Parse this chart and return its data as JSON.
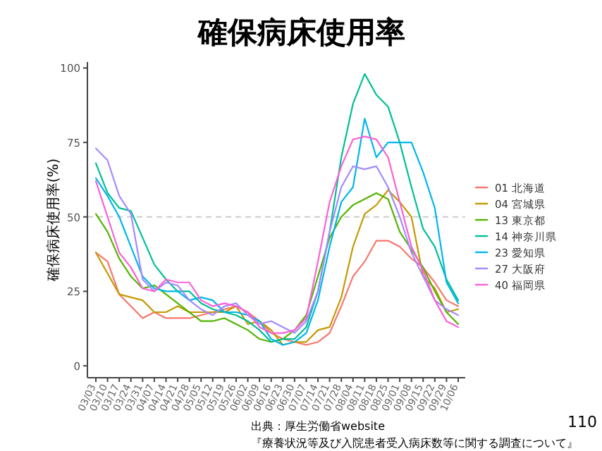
{
  "chart_data": {
    "type": "line",
    "title": "確保病床使用率",
    "ylabel": "確保病床使用率(%)",
    "categories": [
      "03/03",
      "03/10",
      "03/17",
      "03/24",
      "03/31",
      "04/07",
      "04/14",
      "04/21",
      "04/28",
      "05/05",
      "05/12",
      "05/19",
      "05/26",
      "06/02",
      "06/09",
      "06/16",
      "06/23",
      "06/30",
      "07/07",
      "07/14",
      "07/21",
      "07/28",
      "08/04",
      "08/11",
      "08/18",
      "08/25",
      "09/01",
      "09/08",
      "09/15",
      "09/22",
      "09/29",
      "10/06"
    ],
    "series": [
      {
        "name": "01 北海道",
        "color": "#f8766d",
        "values": [
          38,
          35,
          24,
          20,
          16,
          18,
          16,
          16,
          16,
          17,
          18,
          19,
          20,
          18,
          15,
          11,
          9,
          8,
          7,
          8,
          11,
          20,
          30,
          35,
          42,
          42,
          40,
          36,
          33,
          28,
          22,
          20
        ]
      },
      {
        "name": "04 宮城県",
        "color": "#c49a00",
        "values": [
          38,
          31,
          24,
          23,
          22,
          18,
          18,
          20,
          18,
          18,
          18,
          18,
          20,
          14,
          15,
          12,
          7,
          8,
          8,
          12,
          13,
          23,
          40,
          51,
          54,
          59,
          55,
          50,
          30,
          26,
          18,
          19
        ]
      },
      {
        "name": "13 東京都",
        "color": "#53b400",
        "values": [
          51,
          45,
          36,
          30,
          26,
          27,
          24,
          21,
          18,
          15,
          15,
          16,
          14,
          12,
          9,
          8,
          9,
          12,
          17,
          30,
          43,
          50,
          54,
          56,
          58,
          56,
          45,
          39,
          33,
          25,
          18,
          14
        ]
      },
      {
        "name": "14 神奈川県",
        "color": "#00c094",
        "values": [
          68,
          58,
          53,
          52,
          43,
          34,
          29,
          25,
          25,
          21,
          19,
          18,
          17,
          15,
          12,
          8,
          9,
          9,
          13,
          25,
          45,
          70,
          88,
          98,
          91,
          87,
          75,
          60,
          46,
          40,
          29,
          22
        ]
      },
      {
        "name": "23 愛知県",
        "color": "#00b6eb",
        "values": [
          63,
          57,
          50,
          40,
          30,
          26,
          25,
          25,
          22,
          23,
          22,
          18,
          18,
          17,
          15,
          9,
          7,
          8,
          11,
          22,
          40,
          55,
          60,
          83,
          70,
          75,
          75,
          75,
          65,
          53,
          28,
          21
        ]
      },
      {
        "name": "27 大阪府",
        "color": "#a58aff",
        "values": [
          73,
          69,
          57,
          51,
          29,
          25,
          28,
          27,
          22,
          19,
          17,
          20,
          21,
          17,
          14,
          15,
          13,
          11,
          15,
          25,
          45,
          60,
          67,
          66,
          67,
          60,
          50,
          38,
          30,
          22,
          19,
          17
        ]
      },
      {
        "name": "40 福岡県",
        "color": "#fb61d7",
        "values": [
          62,
          50,
          38,
          33,
          26,
          25,
          29,
          28,
          28,
          22,
          20,
          21,
          20,
          18,
          13,
          11,
          11,
          12,
          16,
          35,
          55,
          67,
          76,
          77,
          76,
          70,
          55,
          40,
          32,
          22,
          15,
          13
        ]
      }
    ],
    "ylim": [
      -4,
      102
    ],
    "yticks": [
      0,
      25,
      50,
      75,
      100
    ],
    "ref_lines": [
      {
        "axis": "y",
        "value": 50,
        "color": "#cccccc",
        "line_style": "dashed"
      }
    ],
    "legend": "right",
    "annotations": [
      "出典：厚生労働省website",
      "『療養状況等及び入院患者受入病床数等に関する調査について』",
      "110"
    ]
  }
}
